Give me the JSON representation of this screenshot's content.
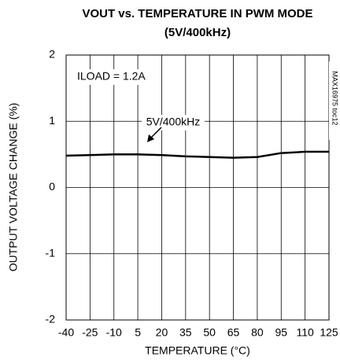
{
  "chart_data": {
    "type": "line",
    "title": [
      "VOUT vs. TEMPERATURE IN PWM MODE",
      "(5V/400kHz)"
    ],
    "x_label": "TEMPERATURE (°C)",
    "y_label": "OUTPUT VOLTAGE CHANGE (%)",
    "annotations": [
      "ILOAD = 1.2A",
      "5V/400kHz",
      "MAX16975 toc12"
    ],
    "x": [
      -40,
      -25,
      -10,
      5,
      20,
      35,
      50,
      65,
      80,
      95,
      110,
      125
    ],
    "series": [
      {
        "name": "5V/400kHz",
        "color": "#000000",
        "values": [
          0.48,
          0.49,
          0.5,
          0.5,
          0.49,
          0.47,
          0.46,
          0.45,
          0.46,
          0.52,
          0.54,
          0.54
        ]
      }
    ],
    "xlim": [
      -40,
      125
    ],
    "xticks": [
      -40,
      -25,
      -10,
      5,
      20,
      35,
      50,
      65,
      80,
      95,
      110,
      125
    ],
    "ylim": [
      -2,
      2
    ],
    "yticks": [
      -2,
      -1,
      0,
      1,
      2
    ],
    "grid": true
  }
}
